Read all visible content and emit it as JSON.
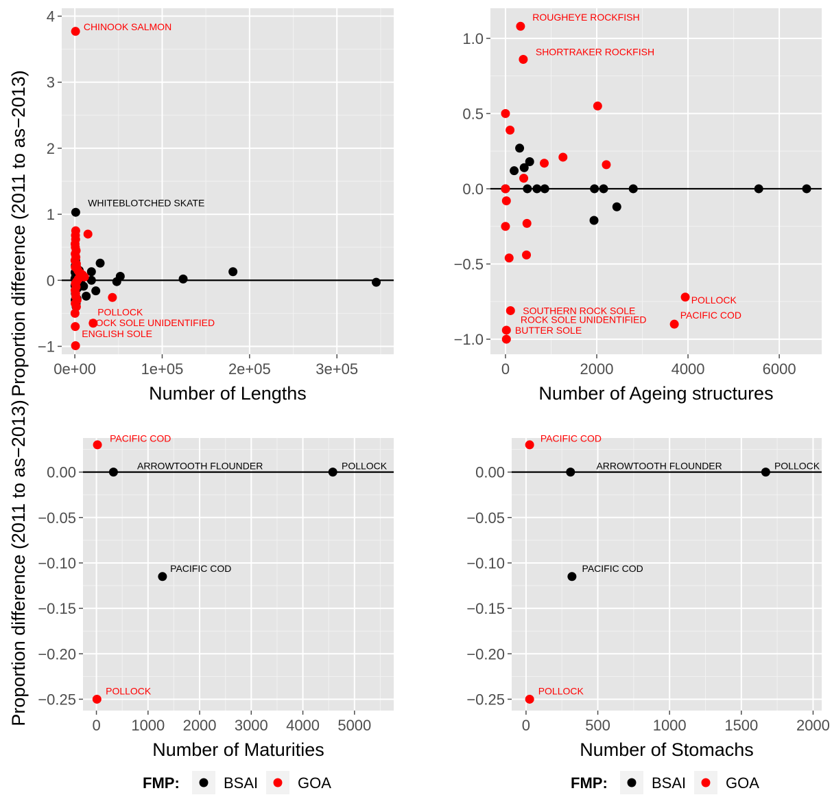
{
  "chart_data": [
    {
      "type": "scatter",
      "xlabel": "Number of Lengths",
      "ylabel": "Proportion difference (2011 to as−2013)",
      "xlim": [
        -15000,
        365000
      ],
      "ylim": [
        -1.12,
        4.12
      ],
      "xticks": [
        {
          "v": 0,
          "label": "0e+00"
        },
        {
          "v": 100000,
          "label": "1e+05"
        },
        {
          "v": 200000,
          "label": "2e+05"
        },
        {
          "v": 300000,
          "label": "3e+05"
        }
      ],
      "yticks": [
        {
          "v": -1,
          "label": "−1"
        },
        {
          "v": 0,
          "label": "0"
        },
        {
          "v": 1,
          "label": "1"
        },
        {
          "v": 2,
          "label": "2"
        },
        {
          "v": 3,
          "label": "3"
        },
        {
          "v": 4,
          "label": "4"
        }
      ],
      "hline": 0,
      "series": [
        {
          "name": "BSAI",
          "color": "#000000",
          "points": [
            [
              1000,
              1.03
            ],
            [
              345000,
              -0.03
            ],
            [
              181000,
              0.13
            ],
            [
              124000,
              0.02
            ],
            [
              52000,
              0.06
            ],
            [
              48000,
              -0.02
            ],
            [
              29000,
              0.26
            ],
            [
              24000,
              -0.16
            ],
            [
              19000,
              0.13
            ],
            [
              19000,
              0.0
            ],
            [
              13000,
              -0.24
            ],
            [
              10000,
              -0.09
            ],
            [
              8000,
              0.08
            ],
            [
              7000,
              -0.05
            ],
            [
              5000,
              0.15
            ],
            [
              4000,
              0.0
            ],
            [
              3000,
              -0.12
            ],
            [
              2500,
              0.1
            ],
            [
              2000,
              0.2
            ],
            [
              1500,
              -0.35
            ],
            [
              1000,
              0.3
            ],
            [
              800,
              0.05
            ],
            [
              600,
              -0.2
            ],
            [
              500,
              0.22
            ],
            [
              400,
              -0.3
            ],
            [
              300,
              0.12
            ],
            [
              200,
              -0.08
            ],
            [
              100,
              0.02
            ],
            [
              1500,
              -0.4
            ],
            [
              2500,
              -0.28
            ]
          ]
        },
        {
          "name": "GOA",
          "color": "#ff0000",
          "points": [
            [
              800,
              3.77
            ],
            [
              15000,
              0.7
            ],
            [
              43000,
              -0.26
            ],
            [
              21000,
              -0.65
            ],
            [
              500,
              -0.7
            ],
            [
              800,
              -0.99
            ],
            [
              1000,
              0.75
            ],
            [
              700,
              0.68
            ],
            [
              900,
              0.62
            ],
            [
              300,
              0.55
            ],
            [
              600,
              0.5
            ],
            [
              1500,
              0.45
            ],
            [
              400,
              0.4
            ],
            [
              1200,
              0.35
            ],
            [
              200,
              0.3
            ],
            [
              1800,
              0.25
            ],
            [
              500,
              0.2
            ],
            [
              2500,
              0.18
            ],
            [
              3500,
              0.15
            ],
            [
              5000,
              0.12
            ],
            [
              7000,
              0.1
            ],
            [
              9000,
              0.08
            ],
            [
              11000,
              0.05
            ],
            [
              4000,
              0.02
            ],
            [
              2000,
              -0.02
            ],
            [
              600,
              -0.05
            ],
            [
              1500,
              -0.1
            ],
            [
              300,
              -0.15
            ],
            [
              900,
              -0.2
            ],
            [
              1200,
              -0.25
            ],
            [
              2500,
              -0.3
            ],
            [
              400,
              -0.35
            ],
            [
              1800,
              -0.4
            ],
            [
              200,
              -0.5
            ]
          ]
        }
      ],
      "annotations": [
        {
          "text": "CHINOOK SALMON",
          "x": 10000,
          "y": 3.84,
          "color": "#ff0000"
        },
        {
          "text": "WHITEBLOTCHED SKATE",
          "x": 15000,
          "y": 1.17,
          "color": "#000000"
        },
        {
          "text": "POLLOCK",
          "x": 26000,
          "y": -0.48,
          "color": "#ff0000"
        },
        {
          "text": "ROCK SOLE UNIDENTIFIED",
          "x": 16000,
          "y": -0.64,
          "color": "#ff0000"
        },
        {
          "text": "ENGLISH SOLE",
          "x": 8000,
          "y": -0.81,
          "color": "#ff0000"
        }
      ]
    },
    {
      "type": "scatter",
      "xlabel": "Number of Ageing structures",
      "ylabel": "",
      "xlim": [
        -330,
        6930
      ],
      "ylim": [
        -1.1,
        1.2
      ],
      "xticks": [
        {
          "v": 0,
          "label": "0"
        },
        {
          "v": 2000,
          "label": "2000"
        },
        {
          "v": 4000,
          "label": "4000"
        },
        {
          "v": 6000,
          "label": "6000"
        }
      ],
      "yticks": [
        {
          "v": -1,
          "label": "−1.0"
        },
        {
          "v": -0.5,
          "label": "−0.5"
        },
        {
          "v": 0,
          "label": "0.0"
        },
        {
          "v": 0.5,
          "label": "0.5"
        },
        {
          "v": 1,
          "label": "1.0"
        }
      ],
      "hline": 0,
      "series": [
        {
          "name": "BSAI",
          "color": "#000000",
          "points": [
            [
              6600,
              0.0
            ],
            [
              5550,
              0.0
            ],
            [
              2800,
              0.0
            ],
            [
              2150,
              0.0
            ],
            [
              1950,
              0.0
            ],
            [
              2440,
              -0.12
            ],
            [
              1940,
              -0.21
            ],
            [
              860,
              0.0
            ],
            [
              690,
              0.0
            ],
            [
              480,
              0.0
            ],
            [
              530,
              0.18
            ],
            [
              410,
              0.14
            ],
            [
              310,
              0.27
            ],
            [
              190,
              0.12
            ],
            [
              0,
              0.0
            ]
          ]
        },
        {
          "name": "GOA",
          "color": "#ff0000",
          "points": [
            [
              330,
              1.08
            ],
            [
              390,
              0.86
            ],
            [
              2020,
              0.55
            ],
            [
              0,
              0.5
            ],
            [
              100,
              0.39
            ],
            [
              1260,
              0.21
            ],
            [
              850,
              0.17
            ],
            [
              2210,
              0.16
            ],
            [
              400,
              0.07
            ],
            [
              0,
              0.0
            ],
            [
              20,
              -0.08
            ],
            [
              470,
              -0.23
            ],
            [
              0,
              -0.25
            ],
            [
              460,
              -0.44
            ],
            [
              80,
              -0.46
            ],
            [
              3940,
              -0.72
            ],
            [
              3700,
              -0.9
            ],
            [
              110,
              -0.81
            ],
            [
              20,
              -0.94
            ],
            [
              20,
              -1.0
            ]
          ]
        }
      ],
      "annotations": [
        {
          "text": "ROUGHEYE ROCKFISH",
          "x": 590,
          "y": 1.14,
          "color": "#ff0000"
        },
        {
          "text": "SHORTRAKER ROCKFISH",
          "x": 660,
          "y": 0.91,
          "color": "#ff0000"
        },
        {
          "text": "POLLOCK",
          "x": 4070,
          "y": -0.74,
          "color": "#ff0000"
        },
        {
          "text": "PACIFIC COD",
          "x": 3830,
          "y": -0.84,
          "color": "#ff0000"
        },
        {
          "text": "SOUTHERN ROCK SOLE",
          "x": 380,
          "y": -0.81,
          "color": "#ff0000"
        },
        {
          "text": "ROCK SOLE UNIDENTIFIED",
          "x": 330,
          "y": -0.87,
          "color": "#ff0000"
        },
        {
          "text": "BUTTER SOLE",
          "x": 210,
          "y": -0.94,
          "color": "#ff0000"
        }
      ]
    },
    {
      "type": "scatter",
      "xlabel": "Number of Maturities",
      "ylabel": "",
      "xlim": [
        -260,
        5760
      ],
      "ylim": [
        -0.2625,
        0.0375
      ],
      "xticks": [
        {
          "v": 0,
          "label": "0"
        },
        {
          "v": 1000,
          "label": "1000"
        },
        {
          "v": 2000,
          "label": "2000"
        },
        {
          "v": 3000,
          "label": "3000"
        },
        {
          "v": 4000,
          "label": "4000"
        },
        {
          "v": 5000,
          "label": "5000"
        }
      ],
      "yticks": [
        {
          "v": -0.25,
          "label": "−0.25"
        },
        {
          "v": -0.2,
          "label": "−0.20"
        },
        {
          "v": -0.15,
          "label": "−0.15"
        },
        {
          "v": -0.1,
          "label": "−0.10"
        },
        {
          "v": -0.05,
          "label": "−0.05"
        },
        {
          "v": 0,
          "label": "0.00"
        }
      ],
      "hline": 0,
      "series": [
        {
          "name": "BSAI",
          "color": "#000000",
          "points": [
            [
              330,
              0.0
            ],
            [
              4580,
              0.0
            ],
            [
              1280,
              -0.115
            ]
          ]
        },
        {
          "name": "GOA",
          "color": "#ff0000",
          "points": [
            [
              20,
              0.03
            ],
            [
              10,
              -0.25
            ]
          ]
        }
      ],
      "annotations": [
        {
          "text": "PACIFIC COD",
          "x": 260,
          "y": 0.037,
          "color": "#ff0000"
        },
        {
          "text": "ARROWTOOTH FLOUNDER",
          "x": 790,
          "y": 0.007,
          "color": "#000000"
        },
        {
          "text": "POLLOCK",
          "x": 4750,
          "y": 0.007,
          "color": "#000000"
        },
        {
          "text": "PACIFIC COD",
          "x": 1430,
          "y": -0.106,
          "color": "#000000"
        },
        {
          "text": "POLLOCK",
          "x": 180,
          "y": -0.241,
          "color": "#ff0000"
        }
      ]
    },
    {
      "type": "scatter",
      "xlabel": "Number of Stomachs",
      "ylabel": "",
      "xlim": [
        -100,
        2060
      ],
      "ylim": [
        -0.2625,
        0.0375
      ],
      "xticks": [
        {
          "v": 0,
          "label": "0"
        },
        {
          "v": 500,
          "label": "500"
        },
        {
          "v": 1000,
          "label": "1000"
        },
        {
          "v": 1500,
          "label": "1500"
        },
        {
          "v": 2000,
          "label": "2000"
        }
      ],
      "yticks": [
        {
          "v": -0.25,
          "label": "−0.25"
        },
        {
          "v": -0.2,
          "label": "−0.20"
        },
        {
          "v": -0.15,
          "label": "−0.15"
        },
        {
          "v": -0.1,
          "label": "−0.10"
        },
        {
          "v": -0.05,
          "label": "−0.05"
        },
        {
          "v": 0,
          "label": "0.00"
        }
      ],
      "hline": 0,
      "series": [
        {
          "name": "BSAI",
          "color": "#000000",
          "points": [
            [
              310,
              0.0
            ],
            [
              1670,
              0.0
            ],
            [
              320,
              -0.115
            ]
          ]
        },
        {
          "name": "GOA",
          "color": "#ff0000",
          "points": [
            [
              25,
              0.03
            ],
            [
              25,
              -0.25
            ]
          ]
        }
      ],
      "annotations": [
        {
          "text": "PACIFIC COD",
          "x": 100,
          "y": 0.037,
          "color": "#ff0000"
        },
        {
          "text": "ARROWTOOTH FLOUNDER",
          "x": 490,
          "y": 0.007,
          "color": "#000000"
        },
        {
          "text": "POLLOCK",
          "x": 1730,
          "y": 0.007,
          "color": "#000000"
        },
        {
          "text": "PACIFIC COD",
          "x": 390,
          "y": -0.106,
          "color": "#000000"
        },
        {
          "text": "POLLOCK",
          "x": 85,
          "y": -0.241,
          "color": "#ff0000"
        }
      ]
    }
  ],
  "legends": [
    {
      "title": "FMP:",
      "items": [
        {
          "label": "BSAI",
          "color": "#000000"
        },
        {
          "label": "GOA",
          "color": "#ff0000"
        }
      ]
    },
    {
      "title": "FMP:",
      "items": [
        {
          "label": "BSAI",
          "color": "#000000"
        },
        {
          "label": "GOA",
          "color": "#ff0000"
        }
      ]
    }
  ]
}
